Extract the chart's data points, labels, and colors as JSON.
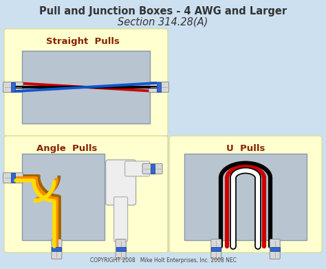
{
  "title_line1": "Pull and Junction Boxes - 4 AWG and Larger",
  "title_line2": "Section 314.28(A)",
  "bg_color": "#cce0f0",
  "panel_color": "#ffffd0",
  "box_color": "#b8c4d0",
  "section1_label": "Straight  Pulls",
  "section2_label": "Angle  Pulls",
  "section3_label": "U  Pulls",
  "label_color": "#882200",
  "copyright": "COPYRIGHT 2008   Mike Holt Enterprises, Inc. 2008 NEC",
  "straight_wires": [
    "#cc0000",
    "#000000",
    "#1155cc"
  ],
  "angle_wires": [
    "#ffdd00",
    "#ff8800",
    "#996600"
  ],
  "u_wires": [
    "#000000",
    "#cc0000",
    "#ffffff"
  ]
}
